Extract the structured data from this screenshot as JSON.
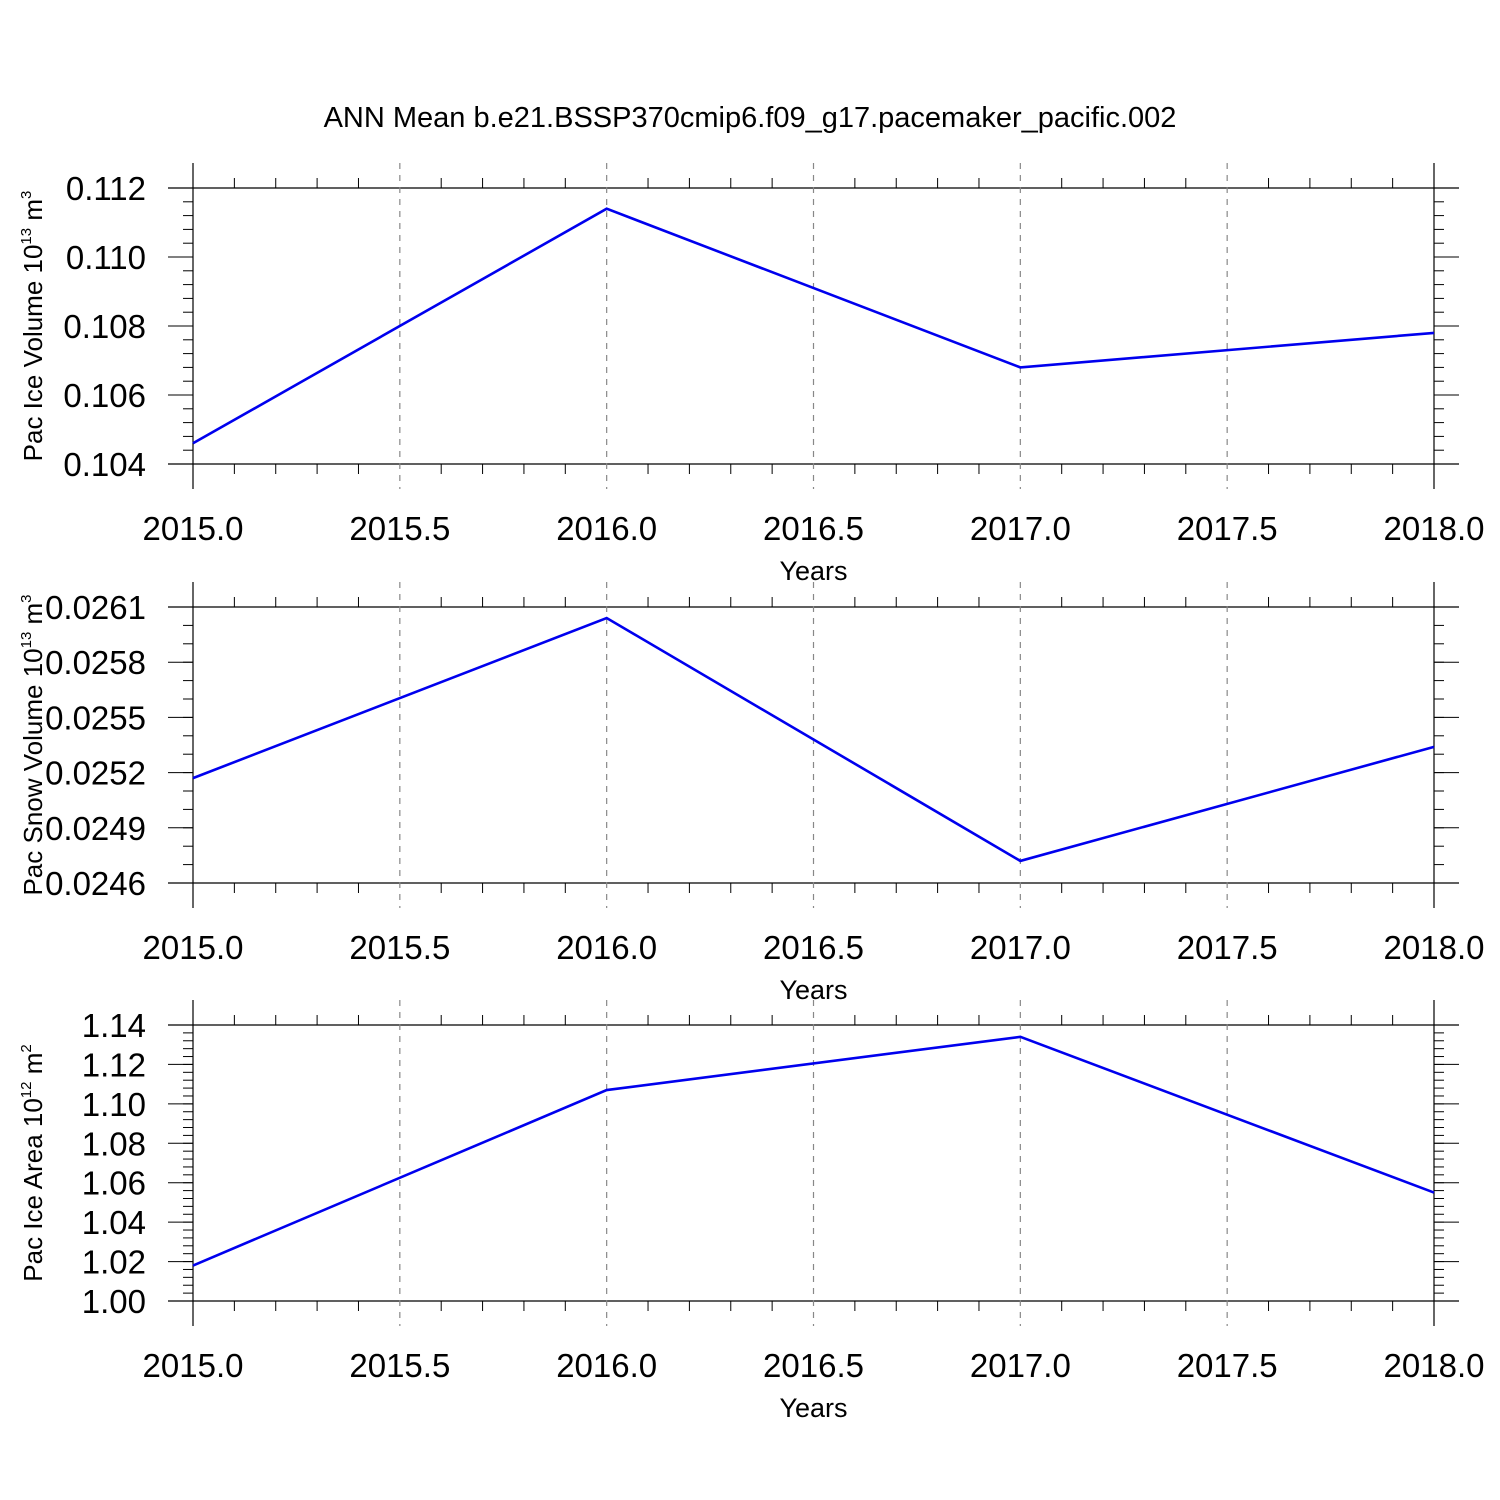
{
  "title": "ANN Mean b.e21.BSSP370cmip6.f09_g17.pacemaker_pacific.002",
  "colors": {
    "series": "#0000ee",
    "axis": "#000000",
    "grid": "#888888"
  },
  "chart_data": [
    {
      "type": "line",
      "xlabel": "Years",
      "ylabel": {
        "text": "Pac Ice Volume 10",
        "exponent": "13",
        "unit": "m",
        "unit_exponent": "3"
      },
      "xlim": [
        2015.0,
        2018.0
      ],
      "ylim": [
        0.104,
        0.112
      ],
      "x_ticks": [
        "2015.0",
        "2015.5",
        "2016.0",
        "2016.5",
        "2017.0",
        "2017.5",
        "2018.0"
      ],
      "y_ticks": [
        {
          "value": 0.104,
          "label": "0.104"
        },
        {
          "value": 0.106,
          "label": "0.106"
        },
        {
          "value": 0.108,
          "label": "0.108"
        },
        {
          "value": 0.11,
          "label": "0.110"
        },
        {
          "value": 0.112,
          "label": "0.112"
        }
      ],
      "y_minor_step": 0.0004,
      "grid": "vertical-dashed",
      "x": [
        2015,
        2016,
        2017,
        2018
      ],
      "values": [
        0.1046,
        0.1114,
        0.1068,
        0.1078
      ]
    },
    {
      "type": "line",
      "xlabel": "Years",
      "ylabel": {
        "text": "Pac Snow Volume 10",
        "exponent": "13",
        "unit": "m",
        "unit_exponent": "3"
      },
      "xlim": [
        2015.0,
        2018.0
      ],
      "ylim": [
        0.0246,
        0.0261
      ],
      "x_ticks": [
        "2015.0",
        "2015.5",
        "2016.0",
        "2016.5",
        "2017.0",
        "2017.5",
        "2018.0"
      ],
      "y_ticks": [
        {
          "value": 0.0246,
          "label": "0.0246"
        },
        {
          "value": 0.0249,
          "label": "0.0249"
        },
        {
          "value": 0.0252,
          "label": "0.0252"
        },
        {
          "value": 0.0255,
          "label": "0.0255"
        },
        {
          "value": 0.0258,
          "label": "0.0258"
        },
        {
          "value": 0.0261,
          "label": "0.0261"
        }
      ],
      "y_minor_step": 0.0001,
      "grid": "vertical-dashed",
      "x": [
        2015,
        2016,
        2017,
        2018
      ],
      "values": [
        0.02517,
        0.02604,
        0.02472,
        0.02534
      ]
    },
    {
      "type": "line",
      "xlabel": "Years",
      "ylabel": {
        "text": "Pac Ice Area 10",
        "exponent": "12",
        "unit": "m",
        "unit_exponent": "2"
      },
      "xlim": [
        2015.0,
        2018.0
      ],
      "ylim": [
        1.0,
        1.14
      ],
      "x_ticks": [
        "2015.0",
        "2015.5",
        "2016.0",
        "2016.5",
        "2017.0",
        "2017.5",
        "2018.0"
      ],
      "y_ticks": [
        {
          "value": 1.0,
          "label": "1.00"
        },
        {
          "value": 1.02,
          "label": "1.02"
        },
        {
          "value": 1.04,
          "label": "1.04"
        },
        {
          "value": 1.06,
          "label": "1.06"
        },
        {
          "value": 1.08,
          "label": "1.08"
        },
        {
          "value": 1.1,
          "label": "1.10"
        },
        {
          "value": 1.12,
          "label": "1.12"
        },
        {
          "value": 1.14,
          "label": "1.14"
        }
      ],
      "y_minor_step": 0.004,
      "grid": "vertical-dashed",
      "x": [
        2015,
        2016,
        2017,
        2018
      ],
      "values": [
        1.018,
        1.107,
        1.134,
        1.055
      ]
    }
  ]
}
